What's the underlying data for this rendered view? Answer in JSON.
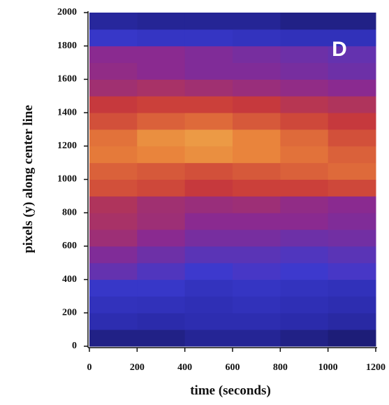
{
  "chart_data": {
    "type": "heatmap",
    "panel_label": "D",
    "xlabel": "time (seconds)",
    "ylabel": "pixels (y) along center line",
    "xlim": [
      0,
      1200
    ],
    "xticks": [
      0,
      200,
      400,
      600,
      800,
      1000,
      1200
    ],
    "ylim": [
      0,
      2000
    ],
    "yticks": [
      0,
      200,
      400,
      600,
      800,
      1000,
      1200,
      1400,
      1600,
      1800,
      2000
    ],
    "x_bins": [
      0,
      200,
      400,
      600,
      800,
      1000,
      1200
    ],
    "y_bins": [
      0,
      100,
      200,
      300,
      400,
      500,
      600,
      700,
      800,
      900,
      1000,
      1100,
      1200,
      1300,
      1400,
      1500,
      1600,
      1700,
      1800,
      1900,
      2000
    ],
    "colormap": [
      "#0a0a30",
      "#2a2aa8",
      "#3a3ad0",
      "#8a2a90",
      "#c83a3a",
      "#e8803a",
      "#f5dc60"
    ],
    "z": [
      [
        0.12,
        0.12,
        0.14,
        0.14,
        0.12,
        0.1
      ],
      [
        0.2,
        0.18,
        0.2,
        0.2,
        0.18,
        0.16
      ],
      [
        0.25,
        0.24,
        0.22,
        0.24,
        0.22,
        0.2
      ],
      [
        0.3,
        0.3,
        0.26,
        0.28,
        0.26,
        0.24
      ],
      [
        0.42,
        0.38,
        0.34,
        0.36,
        0.34,
        0.36
      ],
      [
        0.48,
        0.44,
        0.4,
        0.4,
        0.38,
        0.4
      ],
      [
        0.55,
        0.5,
        0.46,
        0.46,
        0.44,
        0.45
      ],
      [
        0.58,
        0.55,
        0.5,
        0.5,
        0.5,
        0.48
      ],
      [
        0.6,
        0.56,
        0.54,
        0.55,
        0.52,
        0.5
      ],
      [
        0.72,
        0.7,
        0.66,
        0.68,
        0.68,
        0.7
      ],
      [
        0.76,
        0.74,
        0.72,
        0.74,
        0.76,
        0.78
      ],
      [
        0.82,
        0.84,
        0.86,
        0.84,
        0.8,
        0.76
      ],
      [
        0.8,
        0.86,
        0.88,
        0.84,
        0.78,
        0.72
      ],
      [
        0.72,
        0.76,
        0.78,
        0.74,
        0.7,
        0.66
      ],
      [
        0.66,
        0.68,
        0.68,
        0.66,
        0.62,
        0.6
      ],
      [
        0.56,
        0.58,
        0.56,
        0.54,
        0.52,
        0.5
      ],
      [
        0.52,
        0.5,
        0.48,
        0.48,
        0.46,
        0.44
      ],
      [
        0.5,
        0.5,
        0.48,
        0.46,
        0.44,
        0.42
      ],
      [
        0.3,
        0.28,
        0.28,
        0.26,
        0.24,
        0.24
      ],
      [
        0.15,
        0.14,
        0.14,
        0.14,
        0.12,
        0.12
      ]
    ]
  }
}
